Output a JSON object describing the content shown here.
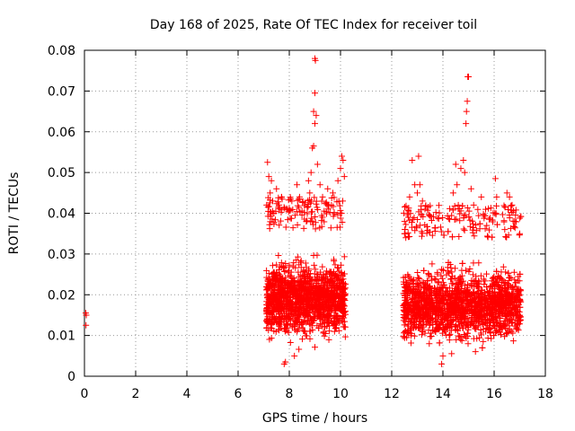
{
  "chart_data": {
    "type": "scatter",
    "title": "Day 168 of 2025, Rate Of TEC Index for receiver toil",
    "xlabel": "GPS time / hours",
    "ylabel": "ROTI / TECUs",
    "xlim": [
      0,
      18
    ],
    "ylim": [
      0,
      0.08
    ],
    "x_ticks": [
      0,
      2,
      4,
      6,
      8,
      10,
      12,
      14,
      16,
      18
    ],
    "x_tick_labels": [
      "0",
      "2",
      "4",
      "6",
      "8",
      "10",
      "12",
      "14",
      "16",
      "18"
    ],
    "y_ticks": [
      0,
      0.01,
      0.02,
      0.03,
      0.04,
      0.05,
      0.06,
      0.07,
      0.08
    ],
    "y_tick_labels": [
      "0",
      "0.01",
      "0.02",
      "0.03",
      "0.04",
      "0.05",
      "0.06",
      "0.07",
      "0.08"
    ],
    "grid": true,
    "marker": "+",
    "color": "#ff0000",
    "series": [
      {
        "name": "ROTI",
        "points": [
          [
            0.05,
            0.0155
          ],
          [
            0.07,
            0.015
          ],
          [
            0.06,
            0.0125
          ],
          [
            7.15,
            0.0525
          ],
          [
            7.2,
            0.049
          ],
          [
            7.25,
            0.045
          ],
          [
            7.3,
            0.048
          ],
          [
            7.35,
            0.043
          ],
          [
            7.4,
            0.04
          ],
          [
            7.5,
            0.046
          ],
          [
            7.6,
            0.042
          ],
          [
            7.7,
            0.044
          ],
          [
            8.1,
            0.043
          ],
          [
            8.3,
            0.047
          ],
          [
            8.4,
            0.044
          ],
          [
            8.75,
            0.048
          ],
          [
            8.8,
            0.045
          ],
          [
            8.85,
            0.05
          ],
          [
            8.9,
            0.056
          ],
          [
            8.95,
            0.065
          ],
          [
            9.0,
            0.078
          ],
          [
            9.02,
            0.0775
          ],
          [
            9.0,
            0.0695
          ],
          [
            9.05,
            0.064
          ],
          [
            9.0,
            0.062
          ],
          [
            8.95,
            0.0565
          ],
          [
            9.1,
            0.052
          ],
          [
            9.2,
            0.047
          ],
          [
            9.3,
            0.044
          ],
          [
            9.5,
            0.046
          ],
          [
            9.7,
            0.045
          ],
          [
            9.9,
            0.048
          ],
          [
            10.0,
            0.051
          ],
          [
            10.05,
            0.054
          ],
          [
            10.1,
            0.053
          ],
          [
            10.15,
            0.049
          ],
          [
            7.8,
            0.003
          ],
          [
            7.85,
            0.0035
          ],
          [
            8.2,
            0.005
          ],
          [
            12.5,
            0.038
          ],
          [
            12.55,
            0.034
          ],
          [
            12.7,
            0.044
          ],
          [
            12.8,
            0.053
          ],
          [
            12.9,
            0.047
          ],
          [
            13.0,
            0.045
          ],
          [
            13.05,
            0.054
          ],
          [
            13.1,
            0.047
          ],
          [
            13.2,
            0.043
          ],
          [
            13.3,
            0.041
          ],
          [
            14.4,
            0.045
          ],
          [
            14.5,
            0.052
          ],
          [
            14.55,
            0.047
          ],
          [
            14.6,
            0.042
          ],
          [
            14.7,
            0.051
          ],
          [
            14.8,
            0.053
          ],
          [
            14.85,
            0.05
          ],
          [
            14.9,
            0.062
          ],
          [
            14.92,
            0.065
          ],
          [
            14.95,
            0.0675
          ],
          [
            14.97,
            0.0735
          ],
          [
            15.0,
            0.0735
          ],
          [
            15.1,
            0.046
          ],
          [
            15.2,
            0.042
          ],
          [
            15.5,
            0.044
          ],
          [
            16.05,
            0.0485
          ],
          [
            16.1,
            0.044
          ],
          [
            16.5,
            0.045
          ],
          [
            16.6,
            0.044
          ],
          [
            16.7,
            0.042
          ],
          [
            16.8,
            0.038
          ],
          [
            17.0,
            0.035
          ],
          [
            13.95,
            0.003
          ],
          [
            14.0,
            0.005
          ]
        ],
        "clusters": [
          {
            "x_range": [
              7.1,
              10.2
            ],
            "y_range": [
              0.006,
              0.036
            ],
            "count": 1500
          },
          {
            "x_range": [
              12.45,
              17.05
            ],
            "y_range": [
              0.005,
              0.034
            ],
            "count": 2100
          }
        ]
      }
    ]
  }
}
